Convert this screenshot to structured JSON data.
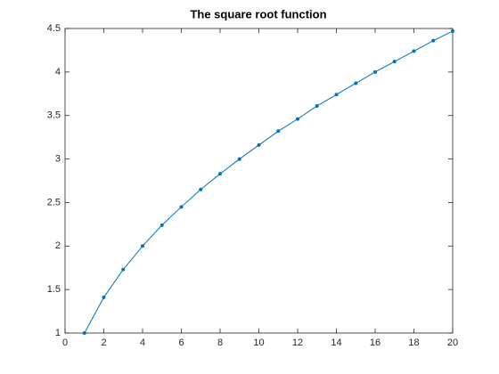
{
  "chart_data": {
    "type": "line",
    "title": "The square root function",
    "x": [
      1,
      2,
      3,
      4,
      5,
      6,
      7,
      8,
      9,
      10,
      11,
      12,
      13,
      14,
      15,
      16,
      17,
      18,
      19,
      20
    ],
    "values": [
      1,
      1.41,
      1.73,
      2,
      2.24,
      2.45,
      2.65,
      2.83,
      3,
      3.16,
      3.32,
      3.46,
      3.61,
      3.74,
      3.87,
      4,
      4.12,
      4.24,
      4.36,
      4.47
    ],
    "color": "#0072bd",
    "markers": true,
    "xlim": [
      0,
      20
    ],
    "xticks": [
      0,
      2,
      4,
      6,
      8,
      10,
      12,
      14,
      16,
      18,
      20
    ],
    "ylim": [
      1,
      4.5
    ],
    "yticks": [
      1,
      1.5,
      2,
      2.5,
      3,
      3.5,
      4,
      4.5
    ],
    "grid": false,
    "box": true
  }
}
